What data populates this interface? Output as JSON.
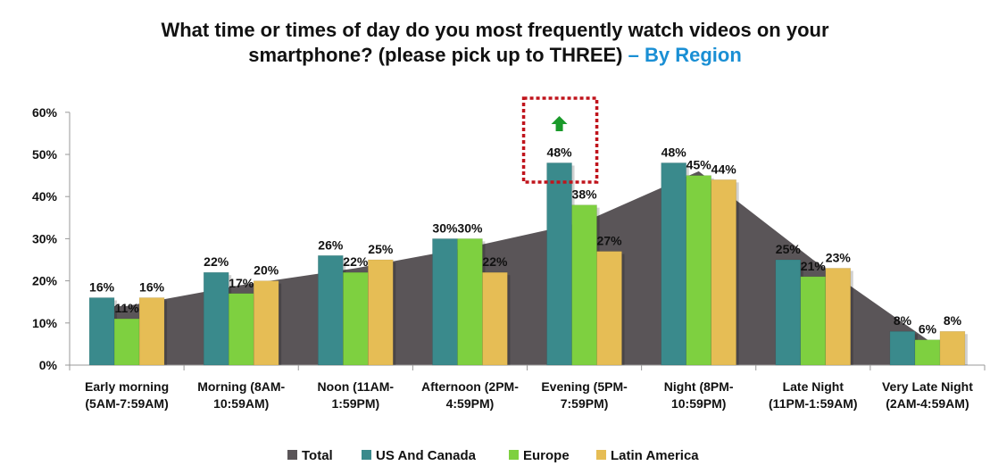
{
  "title": {
    "line1": "What time or times of day do you most frequently watch videos on your",
    "line2": "smartphone? (please pick up to THREE)",
    "suffix": " – By Region"
  },
  "colors": {
    "total": "#5a5558",
    "us_canada": "#3a8a8c",
    "europe": "#7ed040",
    "latin_america": "#e6bd55",
    "highlight_box": "#c0141c",
    "arrow": "#1a9a2a",
    "accent": "#1a8fd4"
  },
  "chart_data": {
    "type": "bar",
    "title": "What time or times of day do you most frequently watch videos on your smartphone? (please pick up to THREE) – By Region",
    "xlabel": "",
    "ylabel": "",
    "ylim": [
      0,
      60
    ],
    "yticks": [
      "0%",
      "10%",
      "20%",
      "30%",
      "40%",
      "50%",
      "60%"
    ],
    "categories": [
      [
        "Early morning",
        "(5AM-7:59AM)"
      ],
      [
        "Morning (8AM-",
        "10:59AM)"
      ],
      [
        "Noon (11AM-",
        "1:59PM)"
      ],
      [
        "Afternoon (2PM-",
        "4:59PM)"
      ],
      [
        "Evening (5PM-",
        "7:59PM)"
      ],
      [
        "Night (8PM-",
        "10:59PM)"
      ],
      [
        "Late Night",
        "(11PM-1:59AM)"
      ],
      [
        "Very Late Night",
        "(2AM-4:59AM)"
      ]
    ],
    "total": {
      "name": "Total",
      "type": "area",
      "values": [
        14,
        19,
        23,
        28,
        34,
        46,
        25,
        6
      ]
    },
    "series": [
      {
        "name": "US And Canada",
        "values": [
          16,
          22,
          26,
          30,
          48,
          48,
          25,
          8
        ]
      },
      {
        "name": "Europe",
        "values": [
          11,
          17,
          22,
          30,
          38,
          45,
          21,
          6
        ]
      },
      {
        "name": "Latin America",
        "values": [
          16,
          20,
          25,
          22,
          27,
          44,
          23,
          8
        ]
      }
    ],
    "value_suffix": "%",
    "highlight": {
      "category_index": 4,
      "series": "US And Canada",
      "marker": "up-arrow"
    },
    "legend": {
      "placement": "bottom",
      "items": [
        "Total",
        "US And Canada",
        "Europe",
        "Latin America"
      ]
    },
    "grid": false
  }
}
